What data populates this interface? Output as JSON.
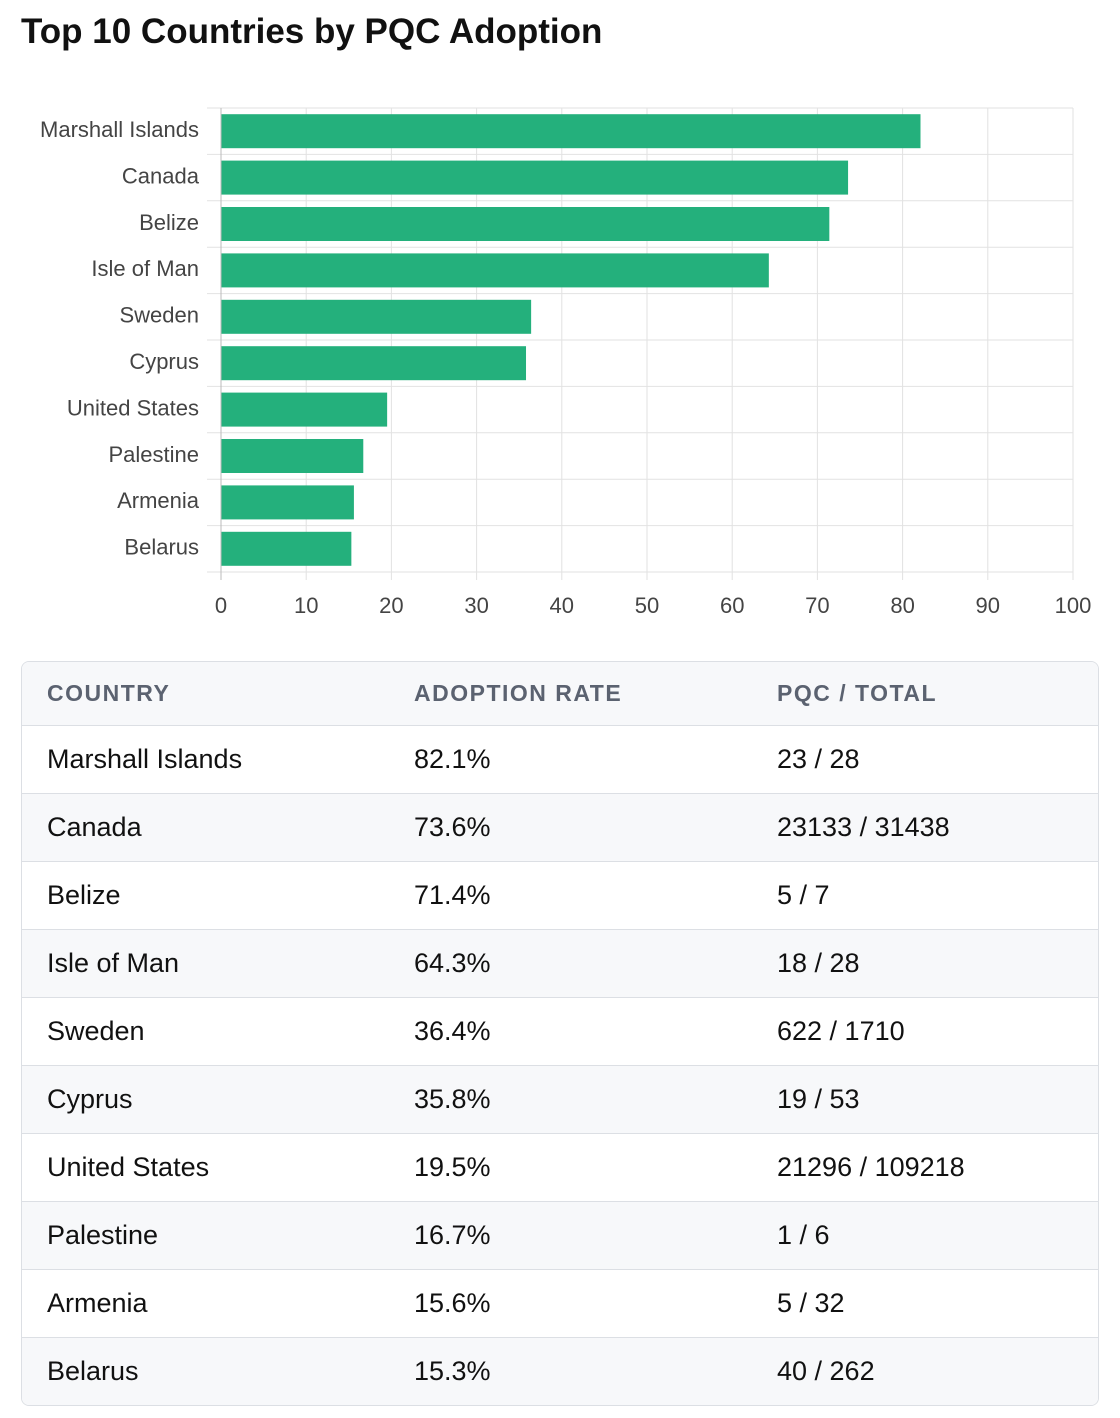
{
  "chart_data": {
    "type": "bar",
    "orientation": "horizontal",
    "title": "Top 10 Countries by PQC Adoption",
    "categories": [
      "Marshall Islands",
      "Canada",
      "Belize",
      "Isle of Man",
      "Sweden",
      "Cyprus",
      "United States",
      "Palestine",
      "Armenia",
      "Belarus"
    ],
    "values": [
      82.1,
      73.6,
      71.4,
      64.3,
      36.4,
      35.8,
      19.5,
      16.7,
      15.6,
      15.3
    ],
    "color": "#24b07c",
    "xlim": [
      0,
      100
    ],
    "xticks": [
      0,
      10,
      20,
      30,
      40,
      50,
      60,
      70,
      80,
      90,
      100
    ],
    "grid": true
  },
  "table": {
    "columns": [
      "COUNTRY",
      "ADOPTION RATE",
      "PQC / TOTAL"
    ],
    "rows": [
      [
        "Marshall Islands",
        "82.1%",
        "23 / 28"
      ],
      [
        "Canada",
        "73.6%",
        "23133 / 31438"
      ],
      [
        "Belize",
        "71.4%",
        "5 / 7"
      ],
      [
        "Isle of Man",
        "64.3%",
        "18 / 28"
      ],
      [
        "Sweden",
        "36.4%",
        "622 / 1710"
      ],
      [
        "Cyprus",
        "35.8%",
        "19 / 53"
      ],
      [
        "United States",
        "19.5%",
        "21296 / 109218"
      ],
      [
        "Palestine",
        "16.7%",
        "1 / 6"
      ],
      [
        "Armenia",
        "15.6%",
        "5 / 32"
      ],
      [
        "Belarus",
        "15.3%",
        "40 / 262"
      ]
    ]
  }
}
